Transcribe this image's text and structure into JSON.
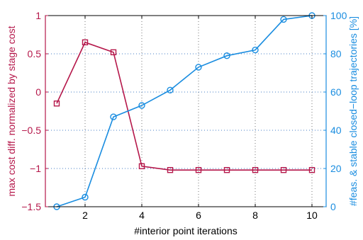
{
  "chart_data": {
    "type": "line",
    "dual_axis": true,
    "xlabel": "#interior point iterations",
    "ylabel_left": "max cost diff. normalized by stage cost",
    "ylabel_right": "#feas. & stable closed−loop trajectories [%]",
    "xlim": [
      0.6,
      10.5
    ],
    "ylim_left": [
      -1.5,
      1
    ],
    "ylim_right": [
      0,
      100
    ],
    "x_ticks": [
      2,
      4,
      6,
      8,
      10
    ],
    "y_ticks_left": [
      -1.5,
      -1,
      -0.5,
      0,
      0.5,
      1
    ],
    "y_ticks_left_labels": [
      "−1.5",
      "−1",
      "−0.5",
      "0",
      "0.5",
      "1"
    ],
    "y_ticks_right": [
      0,
      20,
      40,
      60,
      80,
      100
    ],
    "grid": true,
    "legend": "none",
    "x": [
      1,
      2,
      3,
      4,
      5,
      6,
      7,
      8,
      9,
      10
    ],
    "series": [
      {
        "axis": "left",
        "marker": "square",
        "color": "#b5174a",
        "values": [
          -0.15,
          0.65,
          0.52,
          -0.97,
          -1.02,
          -1.02,
          -1.02,
          -1.02,
          -1.02,
          -1.02
        ]
      },
      {
        "axis": "right",
        "marker": "circle",
        "color": "#1a8de0",
        "values": [
          0,
          5,
          47,
          53,
          61,
          73,
          79,
          82,
          98,
          100
        ]
      }
    ]
  }
}
